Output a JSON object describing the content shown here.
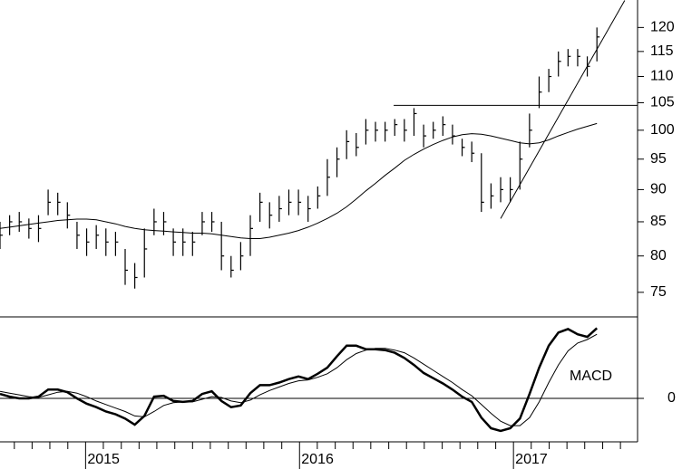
{
  "chart_data": {
    "type": "ohlc",
    "log_scale": true,
    "color": "#000000",
    "xlim": [
      2014.6,
      2017.58
    ],
    "xticks": [
      2015,
      2016,
      2017
    ],
    "xticks_minor": [
      2014.667,
      2014.75,
      2014.833,
      2014.917,
      2015.083,
      2015.167,
      2015.25,
      2015.333,
      2015.417,
      2015.5,
      2015.583,
      2015.667,
      2015.75,
      2015.833,
      2015.917,
      2016.083,
      2016.167,
      2016.25,
      2016.333,
      2016.417,
      2016.5,
      2016.583,
      2016.667,
      2016.75,
      2016.833,
      2016.917,
      2017.083,
      2017.167,
      2017.25,
      2017.333,
      2017.417,
      2017.5
    ],
    "ylim": [
      71.8,
      126
    ],
    "yticks": [
      75,
      80,
      85,
      90,
      95,
      100,
      105,
      110,
      115,
      120
    ],
    "x": [
      2014.6,
      2014.645,
      2014.69,
      2014.735,
      2014.78,
      2014.825,
      2014.87,
      2014.915,
      2014.96,
      2015.005,
      2015.05,
      2015.095,
      2015.14,
      2015.185,
      2015.23,
      2015.275,
      2015.32,
      2015.365,
      2015.41,
      2015.455,
      2015.5,
      2015.545,
      2015.59,
      2015.635,
      2015.68,
      2015.725,
      2015.77,
      2015.815,
      2015.86,
      2015.905,
      2015.95,
      2015.995,
      2016.04,
      2016.085,
      2016.13,
      2016.175,
      2016.22,
      2016.265,
      2016.31,
      2016.355,
      2016.4,
      2016.445,
      2016.49,
      2016.535,
      2016.58,
      2016.625,
      2016.67,
      2016.715,
      2016.76,
      2016.805,
      2016.85,
      2016.895,
      2016.94,
      2016.985,
      2017.03,
      2017.075,
      2017.12,
      2017.165,
      2017.21,
      2017.255,
      2017.3,
      2017.345,
      2017.39
    ],
    "high": [
      85,
      86,
      86.5,
      85.5,
      86,
      90,
      89.5,
      88,
      85,
      84,
      84.5,
      84,
      83.5,
      81,
      79,
      84,
      87,
      86.5,
      84,
      84,
      83.5,
      86.5,
      86.5,
      85,
      80,
      82,
      86,
      89.5,
      88,
      89,
      90,
      90,
      89,
      90.5,
      95,
      97,
      100,
      99.5,
      102,
      101.5,
      101.5,
      102,
      102,
      104,
      101,
      101.5,
      102.5,
      101,
      98.5,
      98,
      96,
      91,
      92,
      92,
      98,
      103,
      110,
      111.5,
      115,
      115.5,
      115.5,
      114,
      120
    ],
    "low": [
      81,
      83,
      83.5,
      82.5,
      82,
      86,
      86,
      84,
      81,
      80,
      81,
      80,
      80,
      76,
      75.5,
      77,
      83,
      83,
      80,
      80,
      80,
      83,
      83.5,
      78,
      77,
      78,
      80,
      85,
      84,
      85,
      86,
      86,
      85,
      87,
      89,
      92,
      95,
      95.5,
      97.5,
      98,
      98,
      99,
      98,
      99,
      97,
      98.5,
      99,
      97.5,
      95.5,
      94.5,
      86.5,
      87,
      88,
      88,
      90,
      97,
      104,
      107,
      110,
      112,
      112,
      110,
      113
    ],
    "close": [
      83,
      85,
      85,
      84,
      84,
      88,
      88,
      86,
      83,
      82,
      83,
      82,
      82,
      78,
      77,
      81,
      85,
      85,
      82,
      82,
      82,
      85,
      85,
      80,
      78,
      80,
      84,
      88,
      86,
      87,
      88,
      88,
      87,
      89,
      92,
      95,
      98,
      97,
      100,
      100,
      100,
      101,
      100,
      103,
      99,
      100,
      101,
      99,
      97,
      96,
      88,
      89,
      90,
      90,
      95,
      100,
      107,
      110,
      113,
      114,
      114,
      112,
      118
    ],
    "ma": [
      84,
      84.2,
      84.4,
      84.6,
      84.8,
      85,
      85.2,
      85.3,
      85.4,
      85.4,
      85.3,
      85,
      84.7,
      84.3,
      84,
      83.8,
      83.7,
      83.6,
      83.5,
      83.4,
      83.3,
      83.3,
      83.2,
      83,
      82.8,
      82.6,
      82.5,
      82.5,
      82.7,
      83,
      83.3,
      83.7,
      84.2,
      84.8,
      85.5,
      86.3,
      87.3,
      88.5,
      89.8,
      91,
      92.3,
      93.5,
      94.8,
      95.8,
      96.7,
      97.5,
      98.2,
      98.8,
      99.2,
      99.4,
      99.3,
      99,
      98.6,
      98.2,
      97.8,
      97.6,
      97.8,
      98.3,
      99,
      99.6,
      100.2,
      100.7,
      101.2
    ],
    "lines": [
      {
        "x": [
          2016.44,
          2017.58
        ],
        "y": [
          104.5,
          104.5
        ]
      },
      {
        "x": [
          2016.94,
          2017.52
        ],
        "y": [
          85.5,
          125.9
        ]
      }
    ],
    "macd": {
      "type": "line",
      "annotation": "MACD",
      "ylim": [
        -4.95,
        9.28
      ],
      "yticks": [
        0
      ],
      "macd": [
        0.5,
        0.2,
        0,
        0,
        0.2,
        1,
        1,
        0.7,
        0,
        -0.6,
        -1,
        -1.5,
        -1.8,
        -2.3,
        -3,
        -2,
        0.2,
        0.3,
        -0.3,
        -0.4,
        -0.3,
        0.5,
        0.8,
        -0.3,
        -1,
        -0.8,
        0.6,
        1.5,
        1.5,
        1.8,
        2.2,
        2.5,
        2.2,
        2.8,
        3.5,
        4.8,
        6,
        6,
        5.6,
        5.6,
        5.5,
        5.2,
        4.6,
        3.8,
        2.9,
        2.3,
        1.7,
        1.0,
        0.2,
        -0.4,
        -2.2,
        -3.4,
        -3.7,
        -3.4,
        -2.3,
        0.5,
        3.5,
        6,
        7.5,
        7.9,
        7.3,
        7,
        8
      ],
      "signal": [
        0.8,
        0.6,
        0.4,
        0.2,
        0.1,
        0.4,
        0.7,
        0.8,
        0.6,
        0.2,
        -0.3,
        -0.7,
        -1.1,
        -1.5,
        -2,
        -2.1,
        -1.5,
        -0.8,
        -0.5,
        -0.4,
        -0.4,
        -0.1,
        0.2,
        0.1,
        -0.3,
        -0.5,
        -0.2,
        0.4,
        0.9,
        1.3,
        1.7,
        2.0,
        2.1,
        2.4,
        2.8,
        3.5,
        4.4,
        5.1,
        5.5,
        5.7,
        5.7,
        5.5,
        5.2,
        4.6,
        3.9,
        3.2,
        2.5,
        1.8,
        1.0,
        0.3,
        -0.7,
        -1.7,
        -2.6,
        -3.1,
        -3.1,
        -2.2,
        -0.4,
        1.8,
        3.8,
        5.4,
        6.3,
        6.7,
        7.3
      ]
    }
  }
}
